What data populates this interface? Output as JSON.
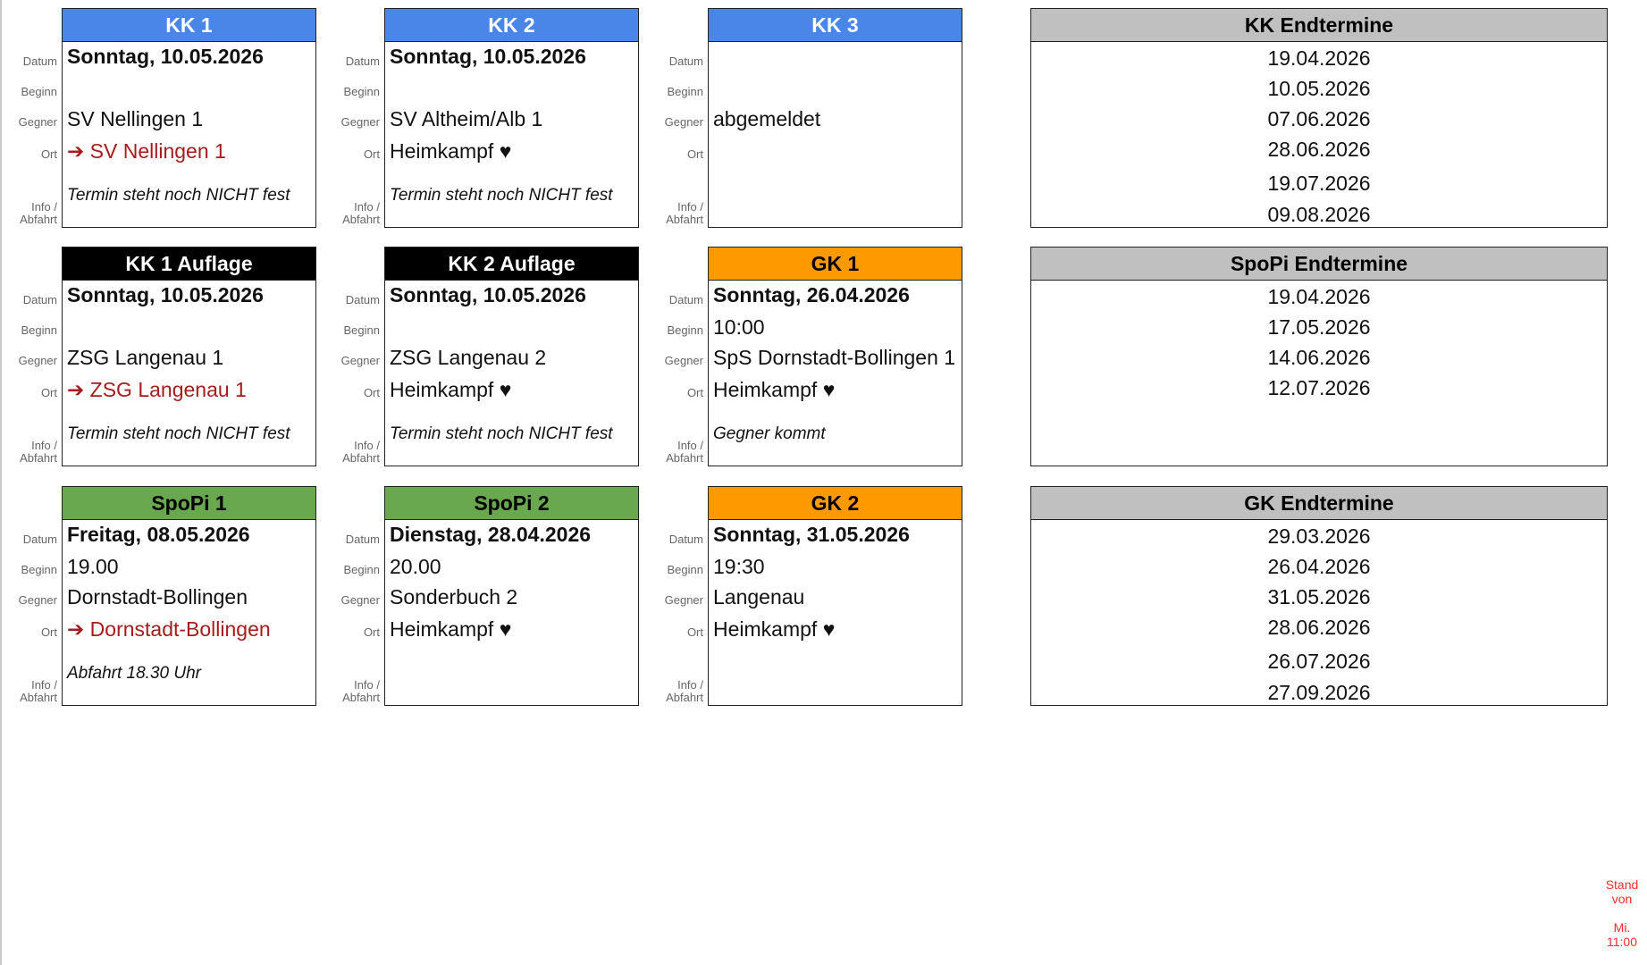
{
  "labels": {
    "datum": "Datum",
    "beginn": "Beginn",
    "gegner": "Gegner",
    "ort": "Ort",
    "info": "Info / Abfahrt"
  },
  "cards": [
    {
      "title": "KK 1",
      "color": "#4a86e8",
      "datum": "Sonntag, 10.05.2026",
      "beginn": "",
      "gegner": "SV Nellingen 1",
      "ort": "➔ SV Nellingen 1",
      "ort_away": true,
      "info": "Termin steht noch NICHT fest"
    },
    {
      "title": "KK 2",
      "color": "#4a86e8",
      "datum": "Sonntag, 10.05.2026",
      "beginn": "",
      "gegner": "SV Altheim/Alb 1",
      "ort": "Heimkampf ♥",
      "ort_away": false,
      "info": "Termin steht noch NICHT fest"
    },
    {
      "title": "KK 3",
      "color": "#4a86e8",
      "datum": "",
      "beginn": "",
      "gegner": "abgemeldet",
      "ort": "",
      "ort_away": false,
      "info": ""
    },
    {
      "title": "KK 1 Auflage",
      "color": "#000000",
      "datum": "Sonntag, 10.05.2026",
      "beginn": "",
      "gegner": "ZSG Langenau 1",
      "ort": "➔ ZSG Langenau 1",
      "ort_away": true,
      "info": "Termin steht noch NICHT fest"
    },
    {
      "title": "KK 2 Auflage",
      "color": "#000000",
      "datum": "Sonntag, 10.05.2026",
      "beginn": "",
      "gegner": "ZSG Langenau 2",
      "ort": "Heimkampf ♥",
      "ort_away": false,
      "info": "Termin steht noch NICHT fest"
    },
    {
      "title": "GK 1",
      "color": "#ff9900",
      "datum": "Sonntag, 26.04.2026",
      "beginn": "10:00",
      "gegner": "SpS Dornstadt-Bollingen 1",
      "ort": "Heimkampf ♥",
      "ort_away": false,
      "info": "Gegner kommt"
    },
    {
      "title": "SpoPi 1",
      "color": "#6aa84f",
      "datum": "Freitag, 08.05.2026",
      "beginn": "19.00",
      "gegner": "Dornstadt-Bollingen",
      "ort": "➔ Dornstadt-Bollingen",
      "ort_away": true,
      "info": "Abfahrt 18.30 Uhr"
    },
    {
      "title": "SpoPi 2",
      "color": "#6aa84f",
      "datum": "Dienstag, 28.04.2026",
      "beginn": "20.00",
      "gegner": "Sonderbuch 2",
      "ort": "Heimkampf ♥",
      "ort_away": false,
      "info": ""
    },
    {
      "title": "GK 2",
      "color": "#ff9900",
      "datum": "Sonntag, 31.05.2026",
      "beginn": "19:30",
      "gegner": "Langenau",
      "ort": "Heimkampf ♥",
      "ort_away": false,
      "info": ""
    }
  ],
  "endtermine": [
    {
      "title": "KK Endtermine",
      "dates": [
        "19.04.2026",
        "10.05.2026",
        "07.06.2026",
        "28.06.2026",
        "19.07.2026",
        "09.08.2026"
      ]
    },
    {
      "title": "SpoPi Endtermine",
      "dates": [
        "19.04.2026",
        "17.05.2026",
        "14.06.2026",
        "12.07.2026",
        "",
        ""
      ]
    },
    {
      "title": "GK Endtermine",
      "dates": [
        "29.03.2026",
        "26.04.2026",
        "31.05.2026",
        "28.06.2026",
        "26.07.2026",
        "27.09.2026"
      ]
    }
  ],
  "stand": "Stand\nvon\n\nMi.\n11:00"
}
